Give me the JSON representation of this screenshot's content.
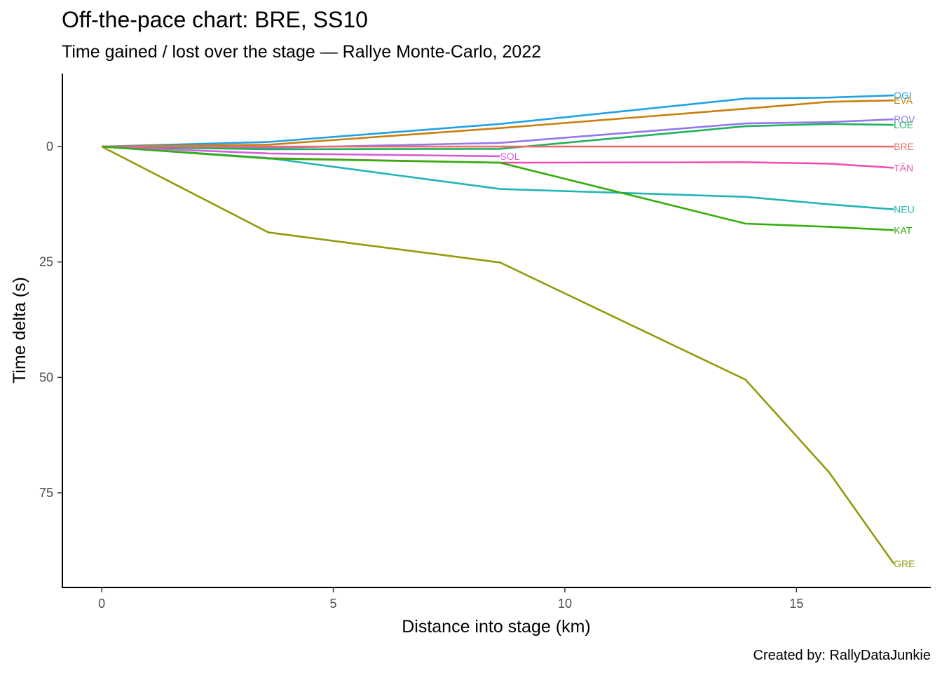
{
  "chart_data": {
    "type": "line",
    "title": "Off-the-pace chart: BRE, SS10",
    "subtitle": "Time gained / lost over the stage — Rallye Monte-Carlo, 2022",
    "xlabel": "Distance into stage (km)",
    "ylabel": "Time delta (s)",
    "caption": "Created by: RallyDataJunkie",
    "xlim": [
      -0.85,
      17.9
    ],
    "ylim": [
      -15.8,
      95.5
    ],
    "y_reversed": true,
    "grid": false,
    "x_ticks": [
      0,
      5,
      10,
      15
    ],
    "x_tick_labels": [
      "0",
      "5",
      "10",
      "15"
    ],
    "y_ticks": [
      0,
      25,
      50,
      75
    ],
    "y_tick_labels": [
      "0",
      "25",
      "50",
      "75"
    ],
    "series": [
      {
        "name": "OGI",
        "color": "#1fa1e6",
        "x": [
          0,
          3.6,
          8.6,
          13.9,
          15.7,
          17.1
        ],
        "values": [
          0,
          -1.0,
          -4.9,
          -10.4,
          -10.6,
          -11.1
        ],
        "label_at": "end"
      },
      {
        "name": "EVA",
        "color": "#c97f0c",
        "x": [
          0,
          3.6,
          8.6,
          13.9,
          15.7,
          17.1
        ],
        "values": [
          0,
          -0.4,
          -4.0,
          -8.2,
          -9.7,
          -10.0
        ],
        "label_at": "end"
      },
      {
        "name": "ROV",
        "color": "#9477ed",
        "x": [
          0,
          3.6,
          8.6,
          13.9,
          15.7,
          17.1
        ],
        "values": [
          0,
          0.3,
          -0.8,
          -5.0,
          -5.3,
          -5.9
        ],
        "label_at": "end"
      },
      {
        "name": "LOE",
        "color": "#1fb15e",
        "x": [
          0,
          3.6,
          8.6,
          13.9,
          15.7,
          17.1
        ],
        "values": [
          0,
          0.6,
          0.5,
          -4.4,
          -4.9,
          -4.7
        ],
        "label_at": "end"
      },
      {
        "name": "BRE",
        "color": "#eb6e6e",
        "x": [
          0,
          3.6,
          8.6,
          13.9,
          15.7,
          17.1
        ],
        "values": [
          0,
          0,
          0,
          0,
          0,
          0
        ],
        "label_at": "end"
      },
      {
        "name": "SOL",
        "color": "#d65ed6",
        "x": [
          0,
          3.6,
          8.6
        ],
        "values": [
          0,
          1.5,
          2.1
        ],
        "label_at": "end"
      },
      {
        "name": "TÄN",
        "color": "#ef4fb1",
        "x": [
          0,
          3.6,
          8.6,
          13.9,
          15.7,
          17.1
        ],
        "values": [
          0,
          2.5,
          3.5,
          3.4,
          3.7,
          4.6
        ],
        "label_at": "end"
      },
      {
        "name": "NEU",
        "color": "#22b4b4",
        "x": [
          0,
          3.6,
          8.6,
          13.9,
          15.7,
          17.1
        ],
        "values": [
          0,
          2.5,
          9.2,
          10.9,
          12.5,
          13.6
        ],
        "label_at": "end"
      },
      {
        "name": "KAT",
        "color": "#35ae0c",
        "x": [
          0,
          3.6,
          8.6,
          13.9,
          15.7,
          17.1
        ],
        "values": [
          0,
          2.6,
          3.5,
          16.7,
          17.4,
          18.1
        ],
        "label_at": "end"
      },
      {
        "name": "GRE",
        "color": "#939a0a",
        "x": [
          0,
          3.6,
          8.6,
          13.9,
          15.7,
          17.1
        ],
        "values": [
          0,
          18.6,
          25.1,
          50.5,
          70.5,
          90.3
        ],
        "label_at": "end"
      }
    ]
  }
}
